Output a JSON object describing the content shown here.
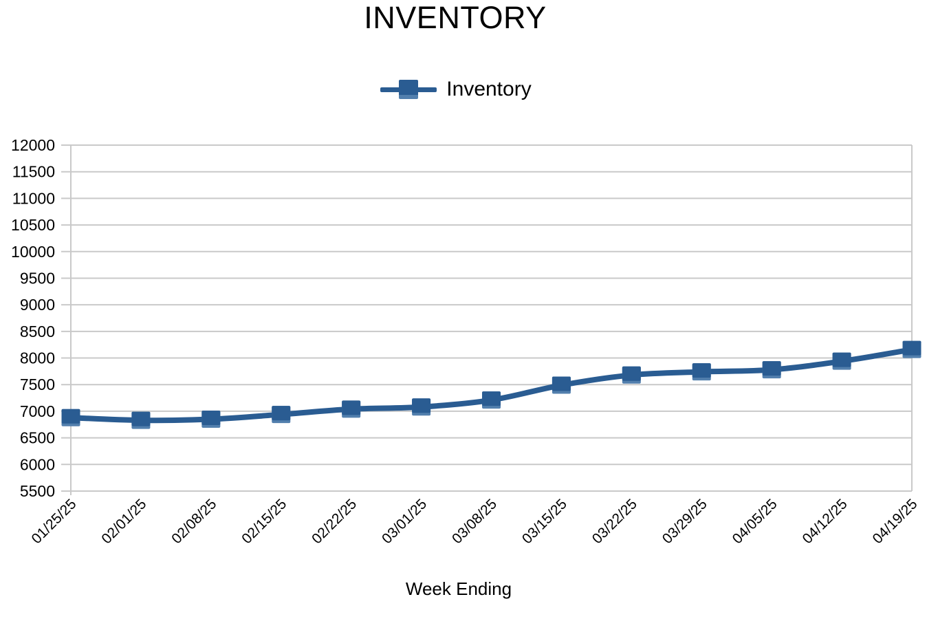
{
  "chart_data": {
    "type": "line",
    "title": "INVENTORY",
    "xlabel": "Week Ending",
    "ylabel": "",
    "legend_position": "top",
    "grid": "horizontal",
    "marker": "square",
    "categories": [
      "01/25/25",
      "02/01/25",
      "02/08/25",
      "02/15/25",
      "02/22/25",
      "03/01/25",
      "03/08/25",
      "03/15/25",
      "03/22/25",
      "03/29/25",
      "04/05/25",
      "04/12/25",
      "04/19/25"
    ],
    "series": [
      {
        "name": "Inventory",
        "values": [
          6880,
          6830,
          6850,
          6940,
          7040,
          7080,
          7210,
          7490,
          7680,
          7740,
          7780,
          7940,
          8160
        ]
      }
    ],
    "ylim": [
      5500,
      12000
    ],
    "yticks": [
      5500,
      6000,
      6500,
      7000,
      7500,
      8000,
      8500,
      9000,
      9500,
      10000,
      10500,
      11000,
      11500,
      12000
    ],
    "colors": {
      "series": "#2A5C92",
      "series_bevel": "#527FAD",
      "grid": "#C9C9C9",
      "text": "#000000"
    }
  }
}
